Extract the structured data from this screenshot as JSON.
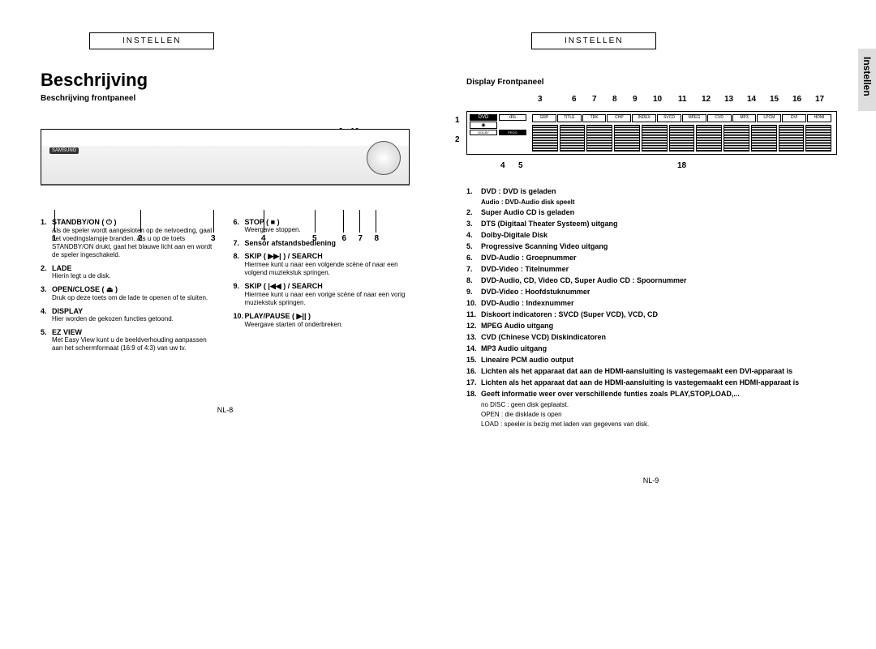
{
  "left": {
    "headerLabel": "INSTELLEN",
    "title": "Beschrijving",
    "subhead": "Beschrijving frontpaneel",
    "topNums": {
      "n9": "9",
      "n10": "10"
    },
    "bottomNums": {
      "n1": "1",
      "n2": "2",
      "n3": "3",
      "n4": "4",
      "n5": "5",
      "n6": "6",
      "n7": "7",
      "n8": "8"
    },
    "col1": [
      {
        "n": "1.",
        "t": "STANDBY/ON ( ⏻ )",
        "d": "Als de speler wordt aangesloten op de netvoeding, gaat het voedingslampje branden. Als u op de toets STANDBY/ON drukt, gaat het blauwe licht aan en wordt de speler ingeschakeld."
      },
      {
        "n": "2.",
        "t": "LADE",
        "d": "Hierin legt u de disk."
      },
      {
        "n": "3.",
        "t": "OPEN/CLOSE ( ⏏ )",
        "d": "Druk op deze toets om de lade te openen of te sluiten."
      },
      {
        "n": "4.",
        "t": "DISPLAY",
        "d": "Hier worden de gekozen functies getoond."
      },
      {
        "n": "5.",
        "t": "EZ VIEW",
        "d": "Met Easy View kunt u de beeldverhouding aanpassen aan het schermformaat (16:9 of 4:3) van uw tv."
      }
    ],
    "col2": [
      {
        "n": "6.",
        "t": "STOP ( ■ )",
        "d": "Weergave stoppen."
      },
      {
        "n": "7.",
        "t": "Sensor afstandsbediening",
        "d": ""
      },
      {
        "n": "8.",
        "t": "SKIP ( ▶▶| ) / SEARCH",
        "d": "Hiermee kunt u naar een volgende scène of naar een volgend muziekstuk springen."
      },
      {
        "n": "9.",
        "t": "SKIP ( |◀◀ ) / SEARCH",
        "d": "Hiermee kunt u naar een vorige scène of naar een vorig muziekstuk springen."
      },
      {
        "n": "10.",
        "t": "PLAY/PAUSE ( ▶|| )",
        "d": "Weergave starten of onderbreken."
      }
    ],
    "pageNum": "NL-8"
  },
  "right": {
    "headerLabel": "INSTELLEN",
    "tab": "Instellen",
    "subhead": "Display Frontpaneel",
    "topNums": {
      "n3": "3",
      "n6": "6",
      "n7": "7",
      "n8": "8",
      "n9": "9",
      "n10": "10",
      "n11": "11",
      "n12": "12",
      "n13": "13",
      "n14": "14",
      "n15": "15",
      "n16": "16",
      "n17": "17"
    },
    "leftNums": {
      "n1": "1",
      "n2": "2"
    },
    "bottomNums": {
      "n4": "4",
      "n5": "5",
      "n18": "18"
    },
    "badges": [
      "GRP",
      "TITLE",
      "TRK",
      "CHP",
      "INDEX",
      "SVCD",
      "MPEG",
      "CVD",
      "MP3",
      "LPCM",
      "DVI",
      "HDMI"
    ],
    "items": [
      {
        "n": "1.",
        "t": "DVD : DVD is geladen",
        "sub": "Audio : DVD-Audio disk speelt"
      },
      {
        "n": "2.",
        "t": "Super Audio CD is geladen"
      },
      {
        "n": "3.",
        "t": "DTS (Digitaal Theater Systeem) uitgang"
      },
      {
        "n": "4.",
        "t": "Dolby-Digitale Disk"
      },
      {
        "n": "5.",
        "t": "Progressive Scanning Video uitgang"
      },
      {
        "n": "6.",
        "t": "DVD-Audio : Groepnummer"
      },
      {
        "n": "7.",
        "t": "DVD-Video : Titelnummer"
      },
      {
        "n": "8.",
        "t": "DVD-Audio, CD, Video CD, Super Audio CD : Spoornummer"
      },
      {
        "n": "9.",
        "t": "DVD-Video : Hoofdstuknummer"
      },
      {
        "n": "10.",
        "t": "DVD-Audio : Indexnummer"
      },
      {
        "n": "11.",
        "t": "Diskoort indicatoren : SVCD (Super VCD), VCD, CD"
      },
      {
        "n": "12.",
        "t": "MPEG Audio uitgang"
      },
      {
        "n": "13.",
        "t": "CVD (Chinese VCD) Diskindicatoren"
      },
      {
        "n": "14.",
        "t": "MP3 Audio uitgang"
      },
      {
        "n": "15.",
        "t": "Lineaire PCM audio output"
      },
      {
        "n": "16.",
        "t": "Lichten als het apparaat dat aan de HDMI-aansluiting is vastegemaakt een DVI-apparaat is"
      },
      {
        "n": "17.",
        "t": "Lichten als het apparaat dat aan de HDMI-aansluiting is vastegemaakt een HDMI-apparaat is"
      },
      {
        "n": "18.",
        "t": "Geeft informatie weer over verschillende funties zoals PLAY,STOP,LOAD,...",
        "subs": [
          "no DISC : geen disk geplaatst.",
          "OPEN : die disklade is open",
          "LOAD : speeler is bezig met laden van gegevens van disk."
        ]
      }
    ],
    "pageNum": "NL-9"
  }
}
